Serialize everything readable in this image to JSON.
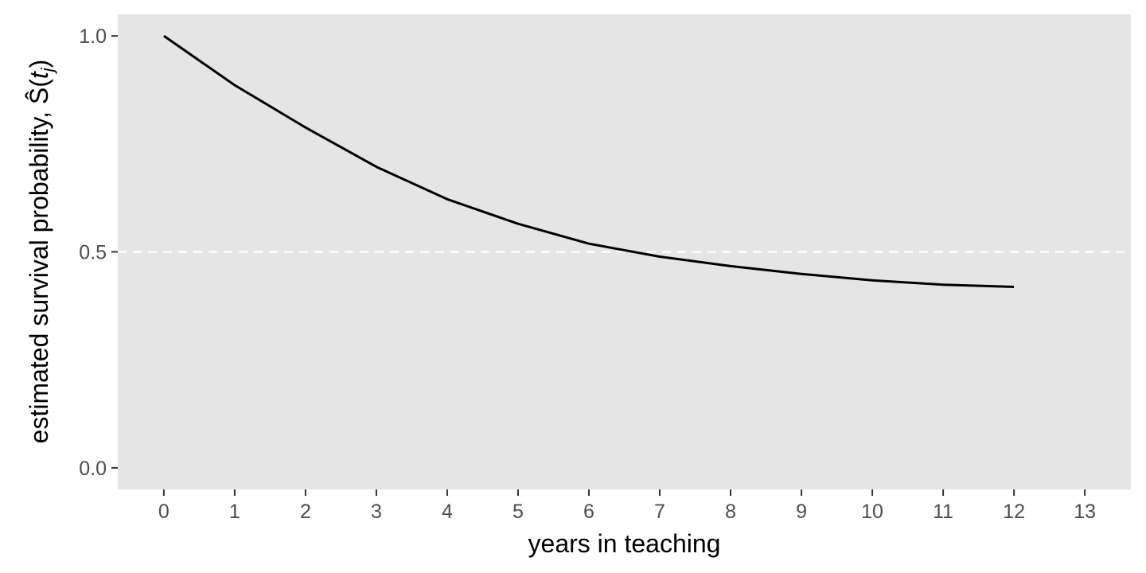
{
  "chart_data": {
    "type": "line",
    "xlabel": "years in teaching",
    "ylabel": {
      "prefix": "estimated survival probability, ",
      "symbol": "Ŝ",
      "paren_open": "(",
      "var": "t",
      "sub": "j",
      "paren_close": ")"
    },
    "xlim": [
      -0.65,
      13.65
    ],
    "ylim": [
      -0.05,
      1.05
    ],
    "x_ticks": [
      0,
      1,
      2,
      3,
      4,
      5,
      6,
      7,
      8,
      9,
      10,
      11,
      12,
      13
    ],
    "x_tick_labels": [
      "0",
      "1",
      "2",
      "3",
      "4",
      "5",
      "6",
      "7",
      "8",
      "9",
      "10",
      "11",
      "12",
      "13"
    ],
    "y_ticks": [
      0.0,
      0.5,
      1.0
    ],
    "y_tick_labels": [
      "0.0",
      "0.5",
      "1.0"
    ],
    "grid": false,
    "series": [
      {
        "x": [
          0,
          1,
          2,
          3,
          4,
          5,
          6,
          7,
          8,
          9,
          10,
          11,
          12
        ],
        "y": [
          1.0,
          0.886,
          0.788,
          0.697,
          0.622,
          0.565,
          0.519,
          0.489,
          0.467,
          0.449,
          0.434,
          0.424,
          0.419
        ]
      }
    ],
    "reference_lines": [
      {
        "orientation": "horizontal",
        "y": 0.5,
        "style": "dashed",
        "color": "#ffffff"
      }
    ],
    "colors": {
      "panel_background": "#e5e5e5",
      "line": "#000000",
      "tick_text": "#4d4d4d",
      "tick_mark": "#333333"
    }
  }
}
